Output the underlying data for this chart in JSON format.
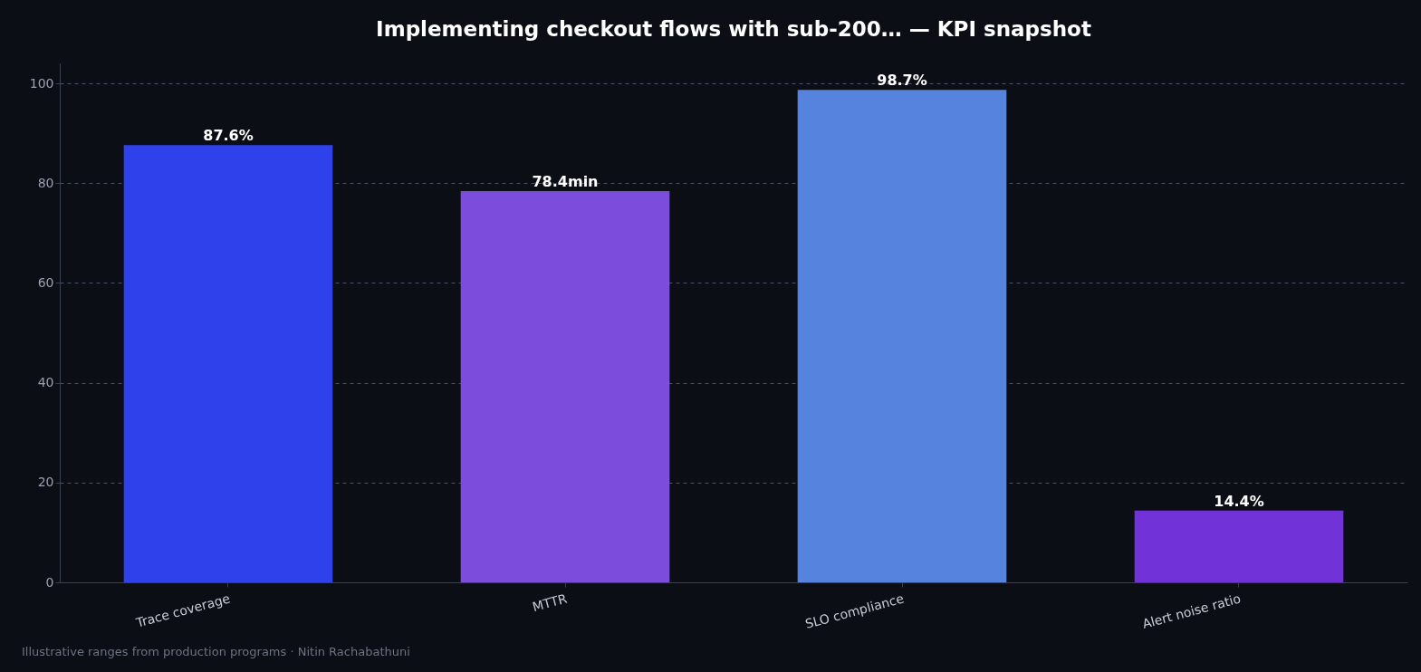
{
  "chart_data": {
    "type": "bar",
    "title": "Implementing checkout flows with sub-200… — KPI snapshot",
    "categories": [
      "Trace coverage",
      "MTTR",
      "SLO compliance",
      "Alert noise ratio"
    ],
    "values": [
      87.6,
      78.4,
      98.7,
      14.4
    ],
    "colors": [
      "#2f41ea",
      "#7c4ddc",
      "#5583de",
      "#7133d8"
    ],
    "value_labels": [
      "87.6%",
      "78.4min",
      "98.7%",
      "14.4%"
    ],
    "ylim": [
      0,
      104
    ],
    "yticks": [
      0,
      20,
      40,
      60,
      80,
      100
    ],
    "grid": "y",
    "annotations": [
      "Illustrative ranges from production programs · Nitin Rachabathuni"
    ]
  }
}
